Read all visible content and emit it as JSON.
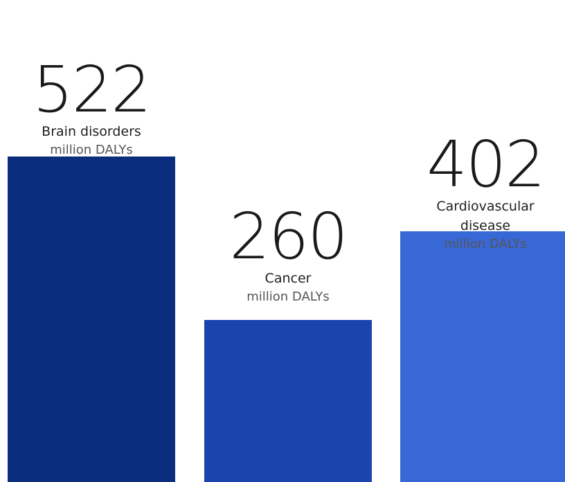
{
  "chart_data": {
    "type": "bar",
    "categories": [
      "Brain disorders",
      "Cancer",
      "Cardiovascular disease"
    ],
    "values": [
      522,
      260,
      402
    ],
    "value_labels": [
      "522",
      "260",
      "402"
    ],
    "unit": "million DALYs",
    "colors": [
      "#0b2d7e",
      "#1a45ad",
      "#3868d6"
    ],
    "ylim": [
      0,
      640
    ],
    "grid": false,
    "title": "",
    "xlabel": "",
    "ylabel": ""
  }
}
